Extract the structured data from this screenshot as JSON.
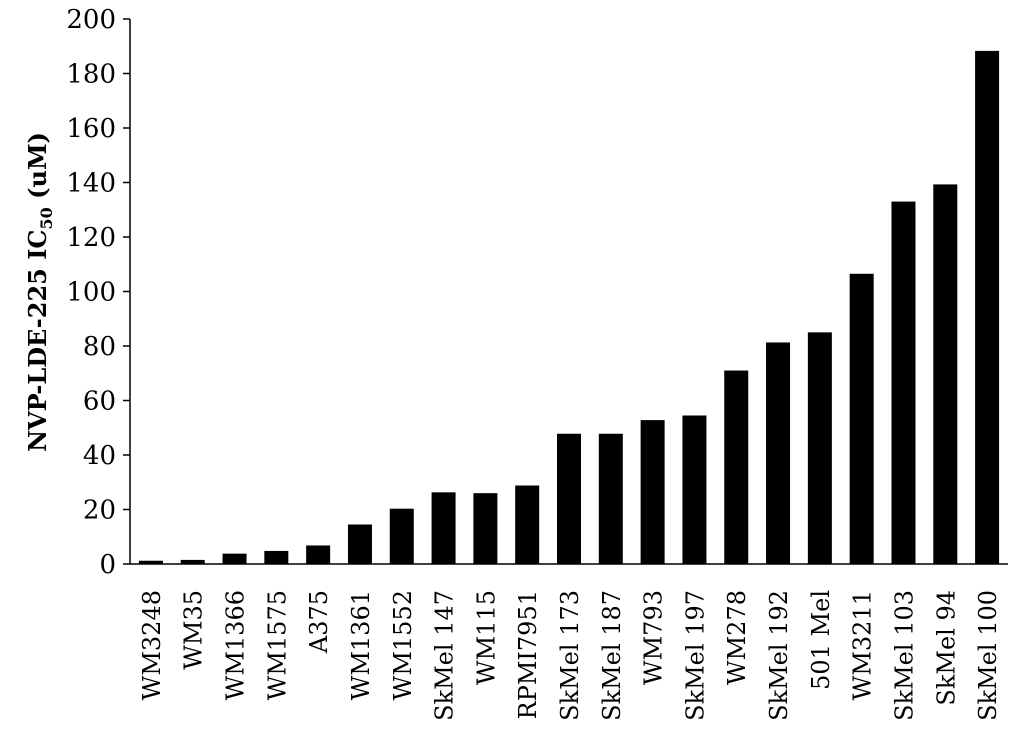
{
  "chart_data": {
    "type": "bar",
    "title": "",
    "xlabel": "",
    "ylabel": {
      "prefix": "NVP-LDE-225 IC",
      "subscript": "50",
      "suffix": " (uM)"
    },
    "ylim": [
      0,
      200
    ],
    "yticks": [
      0,
      20,
      40,
      60,
      80,
      100,
      120,
      140,
      160,
      180,
      200
    ],
    "grid": false,
    "legend": "none",
    "bar_color": "#000000",
    "categories": [
      "WM3248",
      "WM35",
      "WM1366",
      "WM1575",
      "A375",
      "WM1361",
      "WM1552",
      "SkMel 147",
      "WM115",
      "RPMI7951",
      "SkMel 173",
      "SkMel 187",
      "WM793",
      "SkMel 197",
      "WM278",
      "SkMel 192",
      "501 Mel",
      "WM3211",
      "SkMel 103",
      "SkMel 94",
      "SkMel 100"
    ],
    "values": [
      1.2,
      1.5,
      3.8,
      4.8,
      6.8,
      14.5,
      20.3,
      26.3,
      26.0,
      28.8,
      47.8,
      47.8,
      52.8,
      54.5,
      71.0,
      81.3,
      85.0,
      106.5,
      133.0,
      139.3,
      188.3
    ]
  }
}
